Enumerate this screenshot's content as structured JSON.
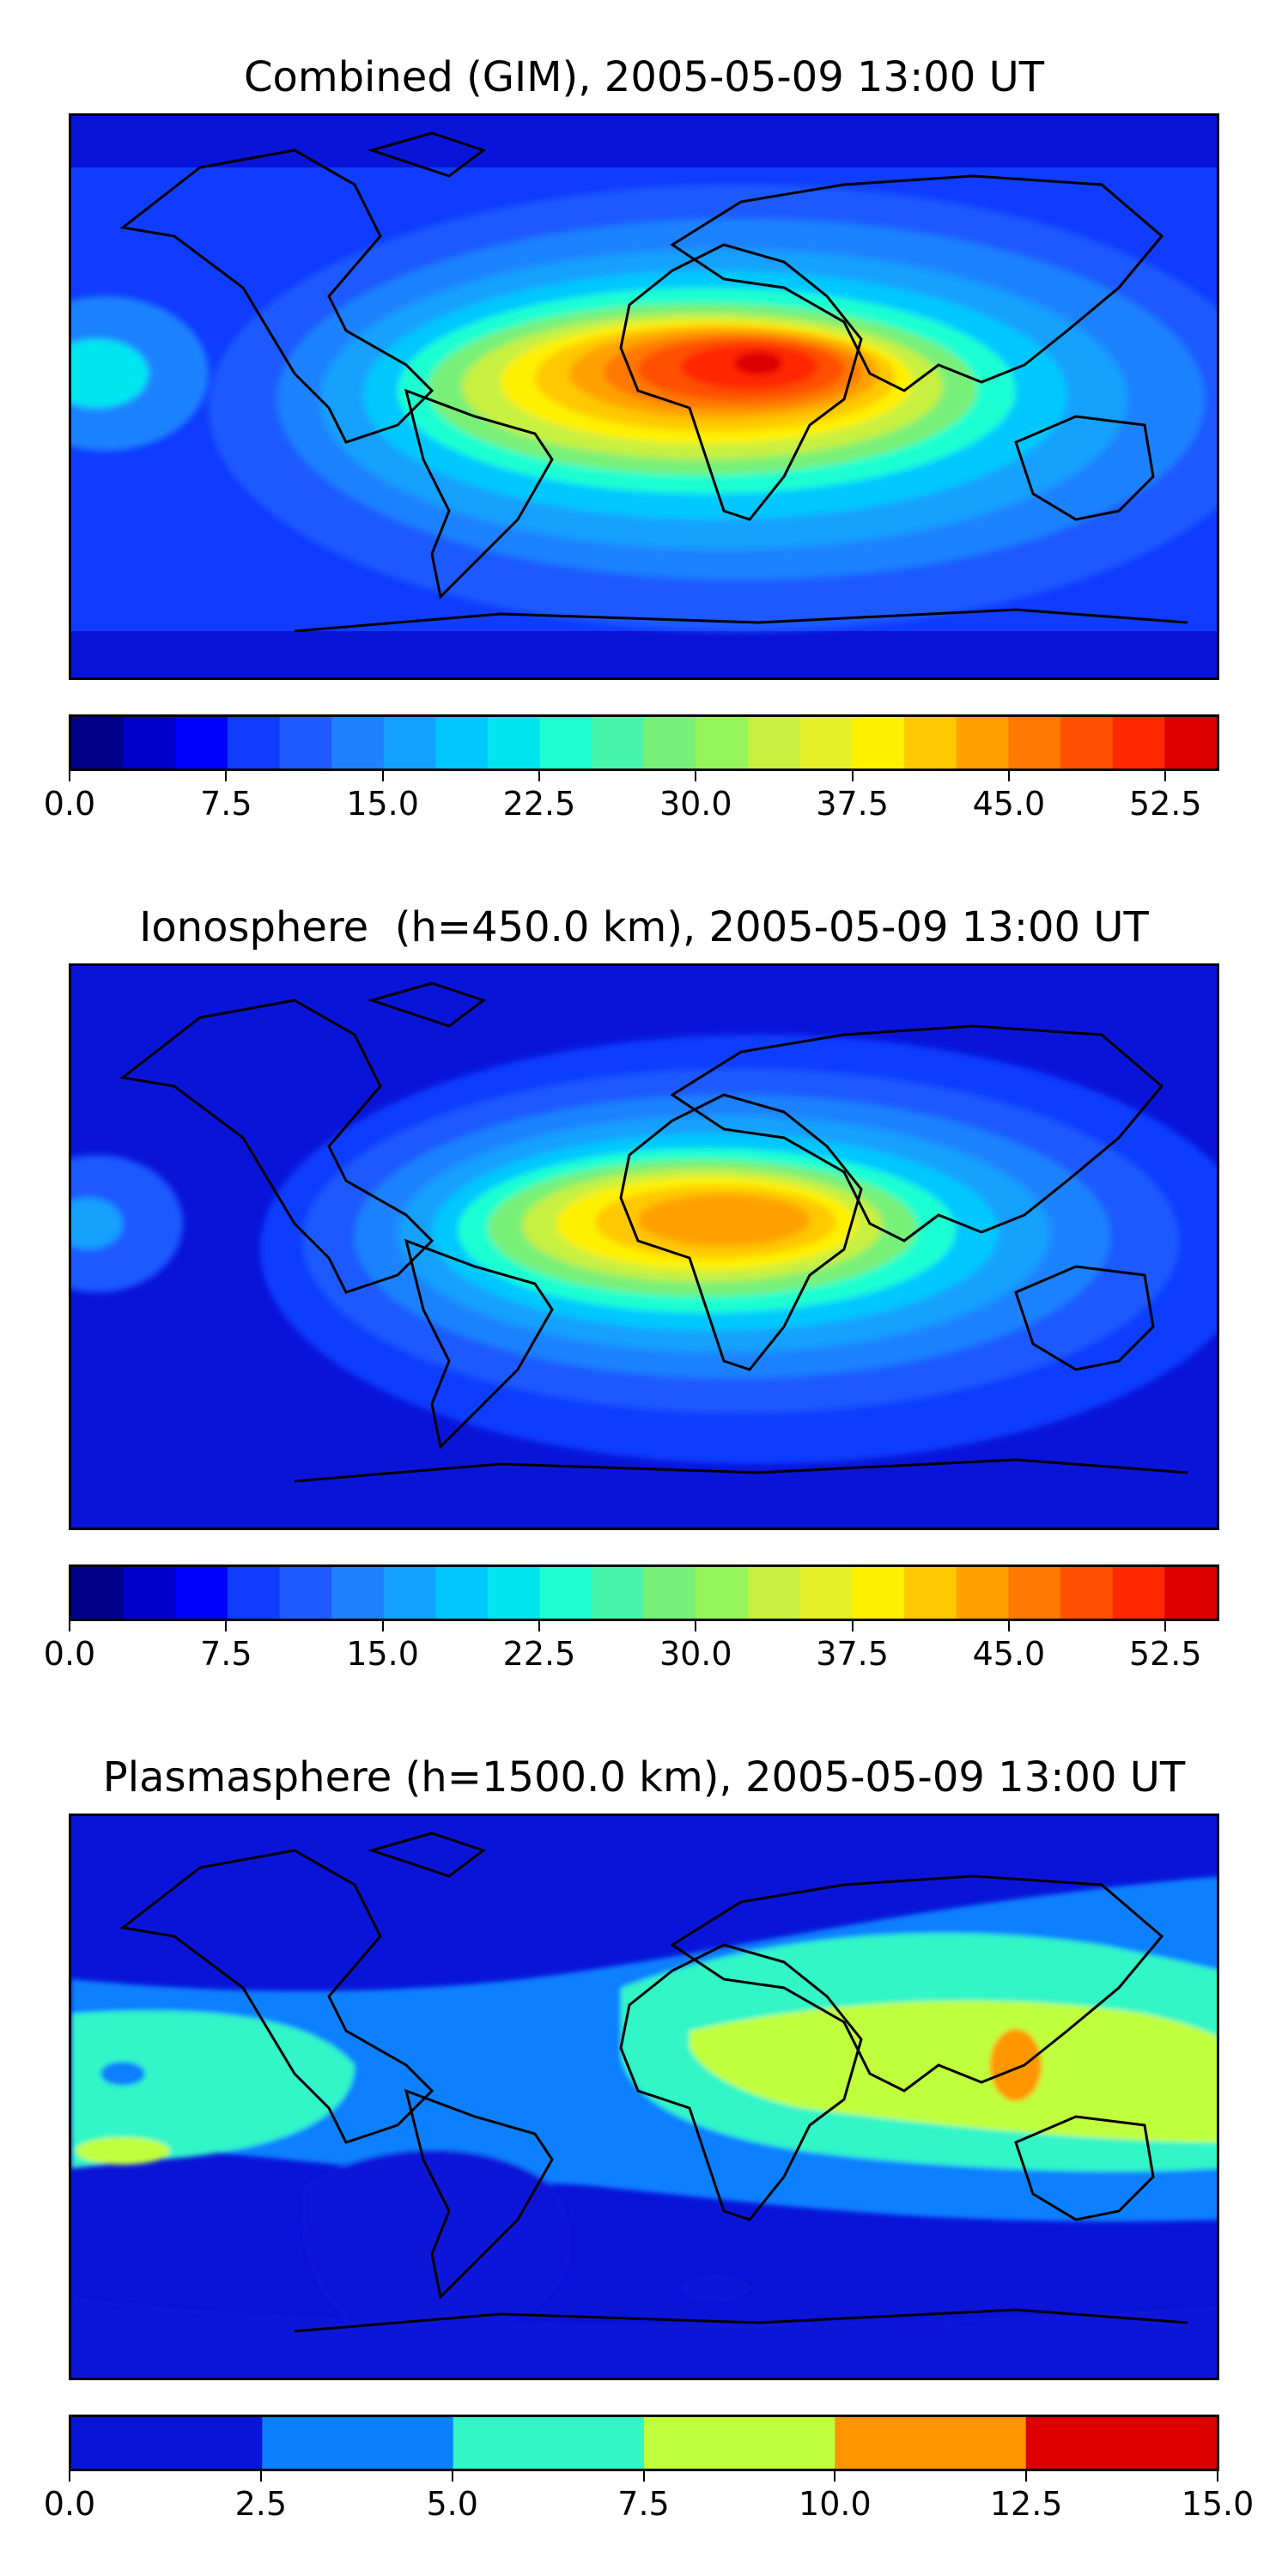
{
  "chart_data": [
    {
      "type": "heatmap",
      "title": "Combined (GIM), 2005-05-09 13:00 UT",
      "colorbar": {
        "levels": [
          0.0,
          2.5,
          5.0,
          7.5,
          10.0,
          12.5,
          15.0,
          17.5,
          20.0,
          22.5,
          25.0,
          27.5,
          30.0,
          32.5,
          35.0,
          37.5,
          40.0,
          42.5,
          45.0,
          47.5,
          50.0,
          52.5,
          55.0
        ],
        "colors": [
          "#00008b",
          "#0000cd",
          "#0000ff",
          "#0f3cff",
          "#1e5aff",
          "#1e82ff",
          "#14a0ff",
          "#00c8ff",
          "#00e6f0",
          "#1effd2",
          "#46f5aa",
          "#78f078",
          "#96f55a",
          "#c8f040",
          "#e6f028",
          "#fff000",
          "#ffc800",
          "#ffa000",
          "#ff7800",
          "#ff5000",
          "#ff2800",
          "#dc0000",
          "#a00000"
        ],
        "tick_labels": [
          "0.0",
          "7.5",
          "15.0",
          "22.5",
          "30.0",
          "37.5",
          "45.0",
          "52.5"
        ],
        "tick_values": [
          0.0,
          7.5,
          15.0,
          22.5,
          30.0,
          37.5,
          45.0,
          52.5
        ],
        "range": [
          0.0,
          55.0
        ]
      },
      "peak_region": "equatorial Africa",
      "peak_value": 50.0
    },
    {
      "type": "heatmap",
      "title": "Ionosphere  (h=450.0 km), 2005-05-09 13:00 UT",
      "colorbar": {
        "levels": [
          0.0,
          2.5,
          5.0,
          7.5,
          10.0,
          12.5,
          15.0,
          17.5,
          20.0,
          22.5,
          25.0,
          27.5,
          30.0,
          32.5,
          35.0,
          37.5,
          40.0,
          42.5,
          45.0,
          47.5,
          50.0,
          52.5,
          55.0
        ],
        "colors": [
          "#00008b",
          "#0000cd",
          "#0000ff",
          "#0f3cff",
          "#1e5aff",
          "#1e82ff",
          "#14a0ff",
          "#00c8ff",
          "#00e6f0",
          "#1effd2",
          "#46f5aa",
          "#78f078",
          "#96f55a",
          "#c8f040",
          "#e6f028",
          "#fff000",
          "#ffc800",
          "#ffa000",
          "#ff7800",
          "#ff5000",
          "#ff2800",
          "#dc0000",
          "#a00000"
        ],
        "tick_labels": [
          "0.0",
          "7.5",
          "15.0",
          "22.5",
          "30.0",
          "37.5",
          "45.0",
          "52.5"
        ],
        "tick_values": [
          0.0,
          7.5,
          15.0,
          22.5,
          30.0,
          37.5,
          45.0,
          52.5
        ],
        "range": [
          0.0,
          55.0
        ]
      },
      "peak_region": "equatorial Africa",
      "peak_value": 42.5
    },
    {
      "type": "heatmap",
      "title": "Plasmasphere (h=1500.0 km), 2005-05-09 13:00 UT",
      "colorbar": {
        "levels": [
          0.0,
          2.5,
          5.0,
          7.5,
          10.0,
          12.5,
          15.0
        ],
        "colors": [
          "#0a14d8",
          "#0a80ff",
          "#32f5c8",
          "#c0ff3c",
          "#ff9600",
          "#dc0000"
        ],
        "tick_labels": [
          "0.0",
          "2.5",
          "5.0",
          "7.5",
          "10.0",
          "12.5",
          "15.0"
        ],
        "tick_values": [
          0.0,
          2.5,
          5.0,
          7.5,
          10.0,
          12.5,
          15.0
        ],
        "range": [
          0.0,
          15.0
        ]
      },
      "peak_region": "maritime Southeast Asia",
      "peak_value": 11.0
    }
  ]
}
